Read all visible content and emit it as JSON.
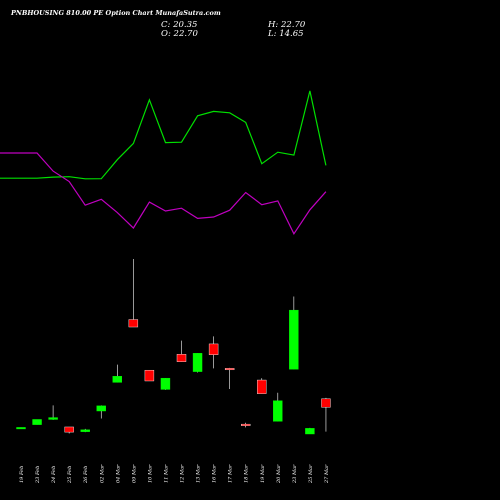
{
  "header": {
    "title": "PNBHOUSING 810.00 PE Option Chart MunafaSutra.com",
    "close": "C: 20.35",
    "high": "H: 22.70",
    "open": "O: 22.70",
    "low": "L: 14.65"
  },
  "colors": {
    "background": "#000000",
    "up": "#00ff00",
    "down": "#ff0000",
    "line_green": "#00e000",
    "line_purple": "#c000c0",
    "wick": "#ffffff"
  },
  "chart_data": {
    "type": "candlestick",
    "title": "PNBHOUSING 810.00 PE Option Chart MunafaSutra.com",
    "categories": [
      "19 Feb",
      "23 Feb",
      "24 Feb",
      "25 Feb",
      "26 Feb",
      "02 Mar",
      "04 Mar",
      "09 Mar",
      "10 Mar",
      "11 Mar",
      "12 Mar",
      "13 Mar",
      "16 Mar",
      "17 Mar",
      "18 Mar",
      "19 Mar",
      "20 Mar",
      "23 Mar",
      "25 Mar",
      "27 Mar"
    ],
    "candles": [
      {
        "open": 4.8,
        "high": 4.9,
        "low": 4.7,
        "close": 4.9
      },
      {
        "open": 5.5,
        "high": 6.6,
        "low": 5.5,
        "close": 6.6
      },
      {
        "open": 6.6,
        "high": 9.6,
        "low": 6.5,
        "close": 7.0
      },
      {
        "open": 5.0,
        "high": 5.0,
        "low": 3.6,
        "close": 3.9
      },
      {
        "open": 4.0,
        "high": 4.6,
        "low": 3.9,
        "close": 4.4
      },
      {
        "open": 8.4,
        "high": 9.6,
        "low": 6.8,
        "close": 9.5
      },
      {
        "open": 14.5,
        "high": 18.3,
        "low": 14.5,
        "close": 15.8
      },
      {
        "open": 27.9,
        "high": 40.8,
        "low": 26.3,
        "close": 26.3
      },
      {
        "open": 17.1,
        "high": 17.1,
        "low": 14.8,
        "close": 14.8
      },
      {
        "open": 13.0,
        "high": 15.4,
        "low": 12.9,
        "close": 15.4
      },
      {
        "open": 20.5,
        "high": 23.4,
        "low": 18.9,
        "close": 18.9
      },
      {
        "open": 16.8,
        "high": 20.7,
        "low": 16.6,
        "close": 20.7
      },
      {
        "open": 22.7,
        "high": 24.3,
        "low": 17.5,
        "close": 20.4
      },
      {
        "open": 17.5,
        "high": 17.6,
        "low": 13.1,
        "close": 17.2
      },
      {
        "open": 5.6,
        "high": 5.9,
        "low": 4.9,
        "close": 5.4
      },
      {
        "open": 15.0,
        "high": 15.4,
        "low": 12.1,
        "close": 12.1
      },
      {
        "open": 6.2,
        "high": 12.3,
        "low": 6.2,
        "close": 10.6
      },
      {
        "open": 17.3,
        "high": 32.8,
        "low": 17.3,
        "close": 29.9
      },
      {
        "open": 3.5,
        "high": 4.8,
        "low": 3.5,
        "close": 4.7
      },
      {
        "open": 11.0,
        "high": 11.2,
        "low": 4.0,
        "close": 9.2
      }
    ],
    "series": [
      {
        "values": [
          0.372,
          0.372,
          0.38,
          0.383,
          0.367,
          0.368,
          0.51,
          0.631,
          0.957,
          0.637,
          0.64,
          0.837,
          0.87,
          0.86,
          0.788,
          0.48,
          0.566,
          0.544,
          1.023,
          0.467
        ]
      },
      {
        "values": [
          0.56,
          0.56,
          0.425,
          0.347,
          0.17,
          0.214,
          0.115,
          0.0,
          0.193,
          0.127,
          0.148,
          0.072,
          0.082,
          0.133,
          0.265,
          0.174,
          0.202,
          -0.043,
          0.136,
          0.271
        ]
      }
    ],
    "grid": false
  }
}
